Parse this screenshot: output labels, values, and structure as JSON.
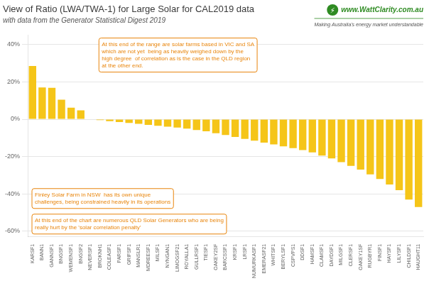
{
  "chart_data": {
    "type": "bar",
    "title": "View of Ratio (LWA/TWA-1) for Large Solar for CAL2019 data",
    "subtitle": "with data from the Generator Statistical Digest 2019",
    "categories": [
      "KARSF1",
      "BANN1",
      "GANNSF1",
      "BNGSF1",
      "WEMENSF1",
      "BNGSF2",
      "NEVERSF1",
      "BROKNH1",
      "COLEASF1",
      "PARSF1",
      "GRIFSF1",
      "MANSLR1",
      "MDREESF1",
      "MILSF1",
      "NYNGAN1",
      "LIMOGSF21",
      "ROYALLA1",
      "GULLRSF1",
      "TIESF1",
      "OAKEY2SF",
      "BARCSSF1",
      "KRSF1",
      "LRSF1",
      "NUMURKASF1",
      "EMERASF21",
      "WHITSF1",
      "BERYLSF1",
      "CSPVPS1",
      "DDSF1",
      "HAMSF1",
      "CLAMSF1",
      "DAYDSF1",
      "MILGSF1",
      "CLERSF1",
      "OAKEY1SF",
      "RUGBYR1",
      "FINSF1",
      "HAYSF1",
      "LILYSF1",
      "CHILDSF1",
      "HAUGHT11"
    ],
    "values": [
      28.5,
      17.0,
      16.8,
      10.5,
      6.2,
      4.8,
      0.2,
      -0.5,
      -1.0,
      -1.5,
      -2.0,
      -2.5,
      -3.0,
      -3.5,
      -4.0,
      -4.5,
      -5.0,
      -5.8,
      -6.5,
      -7.5,
      -8.5,
      -9.5,
      -10.5,
      -11.5,
      -12.5,
      -13.5,
      -14.5,
      -15.5,
      -16.5,
      -17.8,
      -19.5,
      -21.0,
      -23.0,
      -25.0,
      -27.0,
      -29.5,
      -32.0,
      -35.0,
      -38.0,
      -43.0,
      -47.0
    ],
    "color": "#f5c518",
    "ylim": [
      -63,
      45
    ],
    "yticks": [
      {
        "value": -60,
        "label": "-60%"
      },
      {
        "value": -40,
        "label": "-40%"
      },
      {
        "value": -20,
        "label": "-20%"
      },
      {
        "value": 0,
        "label": "0%"
      },
      {
        "value": 20,
        "label": "20%"
      },
      {
        "value": 40,
        "label": "40%"
      }
    ],
    "grid": true,
    "annotations": [
      "At this end of the range are solar farms based in VIC and SA\nwhich are not yet  being as heavily weighed down by the\nhigh degree  of correlation as is the case in the QLD region\nat the other end.",
      "Finley Solar Farm in NSW  has its own unique\nchallenges, being constrained heavily in its operations",
      "At this end of the chart are numerous QLD Solar Generators who are being\nreally hurt by the 'solar correlation penalty'",
      "⚡",
      "www.WattClarity.com.au",
      "Making Australia's energy market understandable"
    ]
  }
}
